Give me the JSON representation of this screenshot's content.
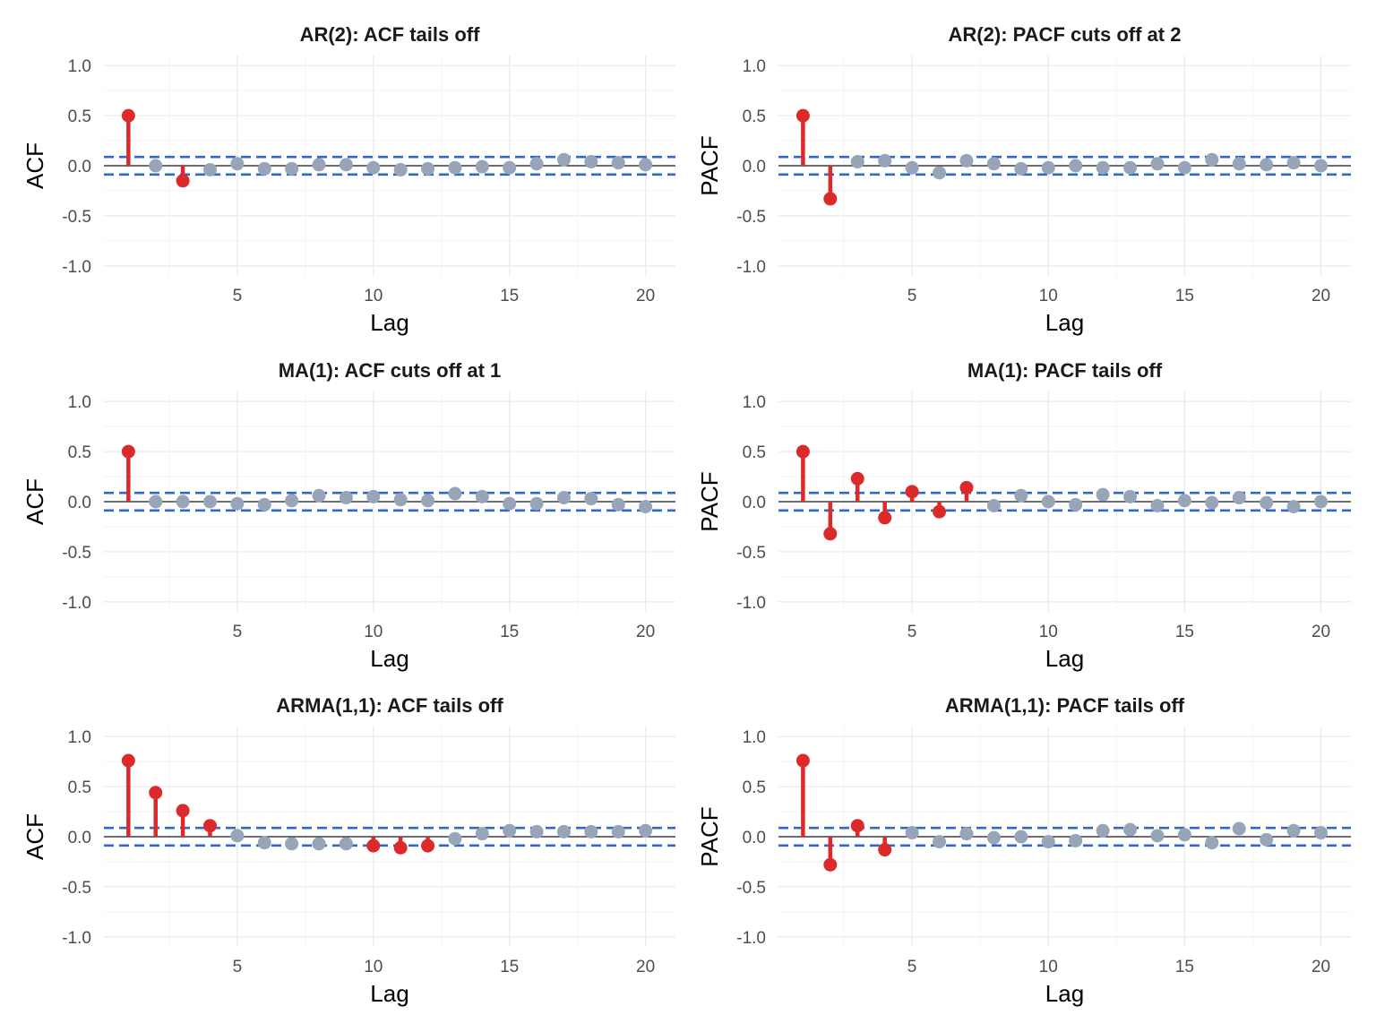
{
  "chart_data": [
    {
      "type": "lollipop",
      "title": "AR(2): ACF tails off",
      "xlabel": "Lag",
      "ylabel": "ACF",
      "xlim": [
        0.1,
        21.1
      ],
      "ylim": [
        -1.1,
        1.1
      ],
      "xticks": [
        5,
        10,
        15,
        20
      ],
      "yticks": [
        -1.0,
        -0.5,
        0.0,
        0.5,
        1.0
      ],
      "ytick_labels": [
        "-1.0",
        "-0.5",
        "0.0",
        "0.5",
        "1.0"
      ],
      "confidence_bound": 0.088,
      "lags": [
        1,
        2,
        3,
        4,
        5,
        6,
        7,
        8,
        9,
        10,
        11,
        12,
        13,
        14,
        15,
        16,
        17,
        18,
        19,
        20
      ],
      "values": [
        0.5,
        0.0,
        -0.15,
        -0.04,
        0.02,
        -0.03,
        -0.03,
        0.01,
        0.01,
        -0.02,
        -0.04,
        -0.03,
        -0.02,
        -0.01,
        -0.02,
        0.02,
        0.06,
        0.04,
        0.03,
        0.01
      ],
      "significant": [
        true,
        false,
        true,
        false,
        false,
        false,
        false,
        false,
        false,
        false,
        false,
        false,
        false,
        false,
        false,
        false,
        false,
        false,
        false,
        false
      ]
    },
    {
      "type": "lollipop",
      "title": "AR(2): PACF cuts off at 2",
      "xlabel": "Lag",
      "ylabel": "PACF",
      "xlim": [
        0.1,
        21.1
      ],
      "ylim": [
        -1.1,
        1.1
      ],
      "xticks": [
        5,
        10,
        15,
        20
      ],
      "yticks": [
        -1.0,
        -0.5,
        0.0,
        0.5,
        1.0
      ],
      "ytick_labels": [
        "-1.0",
        "-0.5",
        "0.0",
        "0.5",
        "1.0"
      ],
      "confidence_bound": 0.088,
      "lags": [
        1,
        2,
        3,
        4,
        5,
        6,
        7,
        8,
        9,
        10,
        11,
        12,
        13,
        14,
        15,
        16,
        17,
        18,
        19,
        20
      ],
      "values": [
        0.5,
        -0.33,
        0.04,
        0.05,
        -0.02,
        -0.07,
        0.05,
        0.02,
        -0.03,
        -0.02,
        0.0,
        -0.02,
        -0.02,
        0.02,
        -0.02,
        0.06,
        0.02,
        0.01,
        0.03,
        0.0
      ],
      "significant": [
        true,
        true,
        false,
        false,
        false,
        false,
        false,
        false,
        false,
        false,
        false,
        false,
        false,
        false,
        false,
        false,
        false,
        false,
        false,
        false
      ]
    },
    {
      "type": "lollipop",
      "title": "MA(1): ACF cuts off at 1",
      "xlabel": "Lag",
      "ylabel": "ACF",
      "xlim": [
        0.1,
        21.1
      ],
      "ylim": [
        -1.1,
        1.1
      ],
      "xticks": [
        5,
        10,
        15,
        20
      ],
      "yticks": [
        -1.0,
        -0.5,
        0.0,
        0.5,
        1.0
      ],
      "ytick_labels": [
        "-1.0",
        "-0.5",
        "0.0",
        "0.5",
        "1.0"
      ],
      "confidence_bound": 0.088,
      "lags": [
        1,
        2,
        3,
        4,
        5,
        6,
        7,
        8,
        9,
        10,
        11,
        12,
        13,
        14,
        15,
        16,
        17,
        18,
        19,
        20
      ],
      "values": [
        0.5,
        0.0,
        0.0,
        0.0,
        -0.02,
        -0.03,
        0.01,
        0.06,
        0.04,
        0.05,
        0.02,
        0.01,
        0.08,
        0.05,
        -0.02,
        -0.02,
        0.04,
        0.03,
        -0.03,
        -0.05
      ],
      "significant": [
        true,
        false,
        false,
        false,
        false,
        false,
        false,
        false,
        false,
        false,
        false,
        false,
        false,
        false,
        false,
        false,
        false,
        false,
        false,
        false
      ]
    },
    {
      "type": "lollipop",
      "title": "MA(1): PACF tails off",
      "xlabel": "Lag",
      "ylabel": "PACF",
      "xlim": [
        0.1,
        21.1
      ],
      "ylim": [
        -1.1,
        1.1
      ],
      "xticks": [
        5,
        10,
        15,
        20
      ],
      "yticks": [
        -1.0,
        -0.5,
        0.0,
        0.5,
        1.0
      ],
      "ytick_labels": [
        "-1.0",
        "-0.5",
        "0.0",
        "0.5",
        "1.0"
      ],
      "confidence_bound": 0.088,
      "lags": [
        1,
        2,
        3,
        4,
        5,
        6,
        7,
        8,
        9,
        10,
        11,
        12,
        13,
        14,
        15,
        16,
        17,
        18,
        19,
        20
      ],
      "values": [
        0.5,
        -0.32,
        0.23,
        -0.16,
        0.1,
        -0.1,
        0.14,
        -0.04,
        0.06,
        0.0,
        -0.03,
        0.07,
        0.05,
        -0.04,
        0.01,
        -0.01,
        0.04,
        -0.01,
        -0.05,
        0.0
      ],
      "significant": [
        true,
        true,
        true,
        true,
        true,
        true,
        true,
        false,
        false,
        false,
        false,
        false,
        false,
        false,
        false,
        false,
        false,
        false,
        false,
        false
      ]
    },
    {
      "type": "lollipop",
      "title": "ARMA(1,1): ACF tails off",
      "xlabel": "Lag",
      "ylabel": "ACF",
      "xlim": [
        0.1,
        21.1
      ],
      "ylim": [
        -1.1,
        1.1
      ],
      "xticks": [
        5,
        10,
        15,
        20
      ],
      "yticks": [
        -1.0,
        -0.5,
        0.0,
        0.5,
        1.0
      ],
      "ytick_labels": [
        "-1.0",
        "-0.5",
        "0.0",
        "0.5",
        "1.0"
      ],
      "confidence_bound": 0.088,
      "lags": [
        1,
        2,
        3,
        4,
        5,
        6,
        7,
        8,
        9,
        10,
        11,
        12,
        13,
        14,
        15,
        16,
        17,
        18,
        19,
        20
      ],
      "values": [
        0.76,
        0.44,
        0.26,
        0.11,
        0.01,
        -0.06,
        -0.07,
        -0.07,
        -0.07,
        -0.09,
        -0.11,
        -0.09,
        -0.02,
        0.03,
        0.06,
        0.05,
        0.05,
        0.05,
        0.05,
        0.06
      ],
      "significant": [
        true,
        true,
        true,
        true,
        false,
        false,
        false,
        false,
        false,
        true,
        true,
        true,
        false,
        false,
        false,
        false,
        false,
        false,
        false,
        false
      ]
    },
    {
      "type": "lollipop",
      "title": "ARMA(1,1): PACF tails off",
      "xlabel": "Lag",
      "ylabel": "PACF",
      "xlim": [
        0.1,
        21.1
      ],
      "ylim": [
        -1.1,
        1.1
      ],
      "xticks": [
        5,
        10,
        15,
        20
      ],
      "yticks": [
        -1.0,
        -0.5,
        0.0,
        0.5,
        1.0
      ],
      "ytick_labels": [
        "-1.0",
        "-0.5",
        "0.0",
        "0.5",
        "1.0"
      ],
      "confidence_bound": 0.088,
      "lags": [
        1,
        2,
        3,
        4,
        5,
        6,
        7,
        8,
        9,
        10,
        11,
        12,
        13,
        14,
        15,
        16,
        17,
        18,
        19,
        20
      ],
      "values": [
        0.76,
        -0.28,
        0.11,
        -0.13,
        0.04,
        -0.05,
        0.03,
        -0.01,
        0.0,
        -0.05,
        -0.04,
        0.06,
        0.07,
        0.01,
        0.02,
        -0.06,
        0.08,
        -0.03,
        0.06,
        0.04
      ],
      "significant": [
        true,
        true,
        true,
        true,
        false,
        false,
        false,
        false,
        false,
        false,
        false,
        false,
        false,
        false,
        false,
        false,
        false,
        false,
        false,
        false
      ]
    }
  ],
  "colors": {
    "significant": "#dc2a2a",
    "not_significant": "#98a5b9",
    "confidence_band": "#2f66d0",
    "zero_line": "#1a1a1a",
    "grid_major": "#ebebeb",
    "grid_minor": "#f3f3f3",
    "tick_text": "#4d4d4d"
  }
}
